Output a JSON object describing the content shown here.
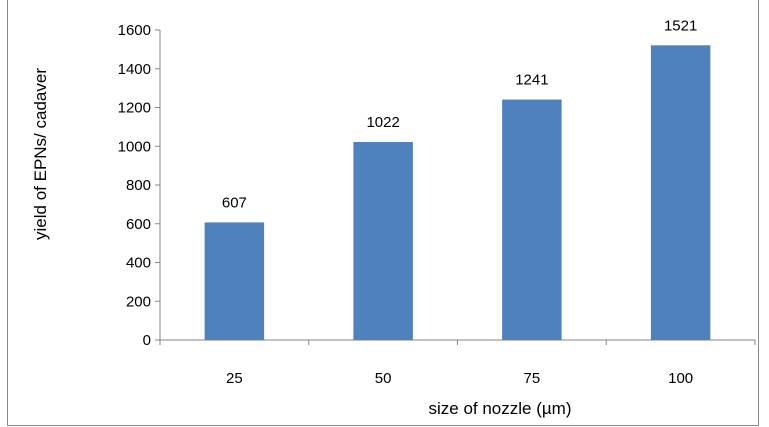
{
  "chart_data": {
    "type": "bar",
    "categories": [
      "25",
      "50",
      "75",
      "100"
    ],
    "values": [
      607,
      1022,
      1241,
      1521
    ],
    "data_labels": [
      "607",
      "1022",
      "1241",
      "1521"
    ],
    "xlabel": "size of nozzle (µm)",
    "ylabel": "yield of EPNs/ cadaver",
    "ylim": [
      0,
      1600
    ],
    "yticks": [
      0,
      200,
      400,
      600,
      800,
      1000,
      1200,
      1400,
      1600
    ],
    "ytick_labels": [
      "0",
      "200",
      "400",
      "600",
      "800",
      "1000",
      "1200",
      "1400",
      "1600"
    ],
    "grid": false,
    "legend": "none",
    "bar_color": "#4f81bd"
  }
}
